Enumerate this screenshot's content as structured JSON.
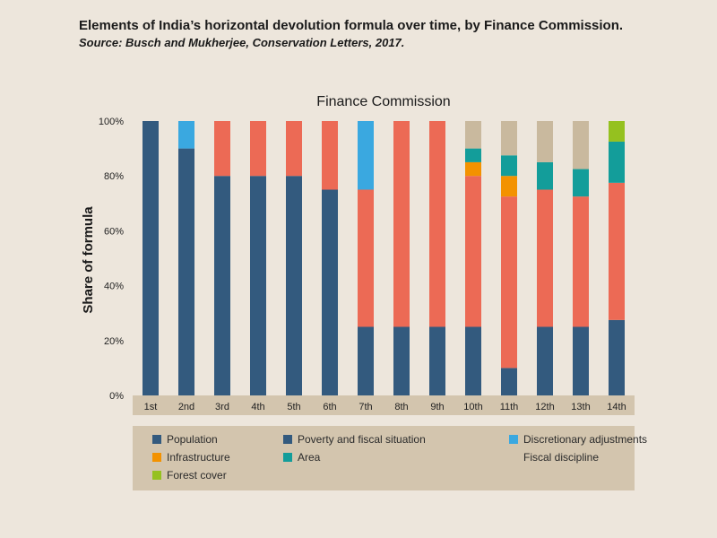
{
  "title": "Elements of India’s horizontal devolution formula over time, by Finance Commission.",
  "source": "Source: Busch and Mukherjee, Conservation Letters, 2017.",
  "chart_data": {
    "type": "bar",
    "stacked": true,
    "title": "Finance Commission",
    "xlabel": "",
    "ylabel": "Share of formula",
    "ylim": [
      0,
      100
    ],
    "yticks": [
      "0%",
      "20%",
      "40%",
      "60%",
      "80%",
      "100%"
    ],
    "categories": [
      "1st",
      "2nd",
      "3rd",
      "4th",
      "5th",
      "6th",
      "7th",
      "8th",
      "9th",
      "10th",
      "11th",
      "12th",
      "13th",
      "14th"
    ],
    "series": [
      {
        "name": "Population",
        "color": "#335a7e",
        "values": [
          100,
          90,
          80,
          80,
          80,
          75,
          25,
          25,
          25,
          25,
          10,
          25,
          25,
          27.5
        ]
      },
      {
        "name": "Poverty and fiscal situation",
        "color": "#ec6a55",
        "values": [
          0,
          0,
          20,
          20,
          20,
          25,
          50,
          75,
          75,
          55,
          62.5,
          50,
          47.5,
          50
        ]
      },
      {
        "name": "Discretionary adjustments",
        "color": "#3aa8e0",
        "values": [
          0,
          10,
          0,
          0,
          0,
          0,
          25,
          0,
          0,
          0,
          0,
          0,
          0,
          0
        ]
      },
      {
        "name": "Infrastructure",
        "color": "#f39200",
        "values": [
          0,
          0,
          0,
          0,
          0,
          0,
          0,
          0,
          0,
          5,
          7.5,
          0,
          0,
          0
        ]
      },
      {
        "name": "Area",
        "color": "#139d9a",
        "values": [
          0,
          0,
          0,
          0,
          0,
          0,
          0,
          0,
          0,
          5,
          7.5,
          10,
          10,
          15
        ]
      },
      {
        "name": "Fiscal discipline",
        "color": "#c9b99e",
        "values": [
          0,
          0,
          0,
          0,
          0,
          0,
          0,
          0,
          0,
          10,
          12.5,
          15,
          17.5,
          0
        ]
      },
      {
        "name": "Forest cover",
        "color": "#95c11f",
        "values": [
          0,
          0,
          0,
          0,
          0,
          0,
          0,
          0,
          0,
          0,
          0,
          0,
          0,
          7.5
        ]
      }
    ],
    "legend": {
      "placement": "bottom",
      "swatch_colors": [
        "#335a7e",
        "#335a7e",
        "#3aa8e0",
        "#f39200",
        "#139d9a",
        "#d3c5ae",
        "#95c11f"
      ]
    },
    "grid": false
  }
}
